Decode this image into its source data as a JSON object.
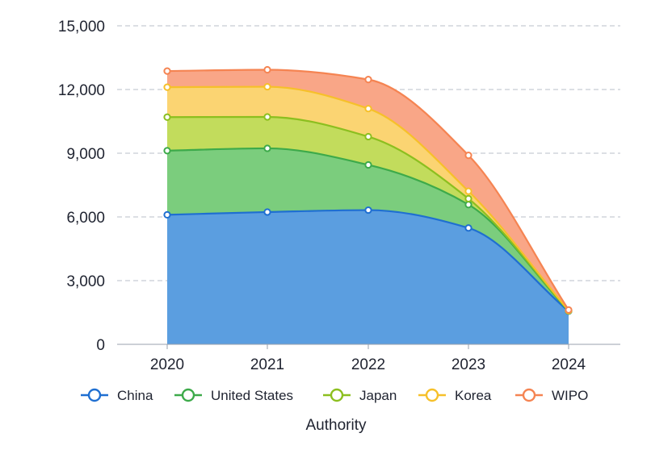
{
  "chart_data": {
    "type": "area",
    "stacked": true,
    "title": "",
    "xlabel": "Authority",
    "ylabel": "",
    "categories": [
      "2020",
      "2021",
      "2022",
      "2023",
      "2024"
    ],
    "ylim": [
      0,
      15000
    ],
    "yticks": [
      0,
      3000,
      6000,
      9000,
      12000,
      15000
    ],
    "ytick_labels": [
      "0",
      "3,000",
      "6,000",
      "9,000",
      "12,000",
      "15,000"
    ],
    "grid": true,
    "legend_position": "bottom",
    "series": [
      {
        "name": "China",
        "values": [
          6100,
          6230,
          6320,
          5480,
          1560
        ],
        "color": "#1f6fd1",
        "fill": "#5b9ee0"
      },
      {
        "name": "United States",
        "values": [
          3020,
          3000,
          2130,
          1100,
          10
        ],
        "color": "#3daa4a",
        "fill": "#7bcd7d"
      },
      {
        "name": "Japan",
        "values": [
          1580,
          1480,
          1330,
          280,
          10
        ],
        "color": "#8cbf1f",
        "fill": "#c2dc5c"
      },
      {
        "name": "Korea",
        "values": [
          1410,
          1420,
          1320,
          350,
          10
        ],
        "color": "#f6c02a",
        "fill": "#fbd472"
      },
      {
        "name": "WIPO",
        "values": [
          760,
          800,
          1370,
          1690,
          30
        ],
        "color": "#f58452",
        "fill": "#f9a687"
      }
    ]
  }
}
